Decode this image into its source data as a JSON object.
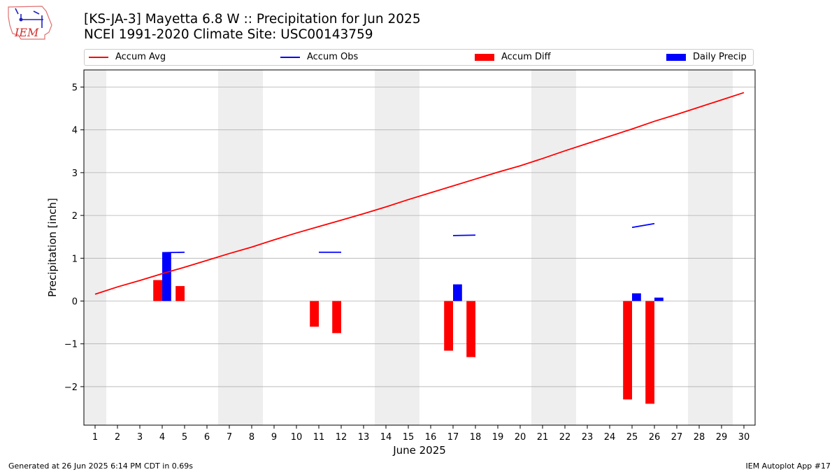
{
  "title_line1": "[KS-JA-3] Mayetta 6.8 W :: Precipitation for Jun 2025",
  "title_line2": "NCEI 1991-2020 Climate Site: USC00143759",
  "logo_text": "IEM",
  "legend": [
    {
      "label": "Accum Avg",
      "color": "#ff0000",
      "kind": "line"
    },
    {
      "label": "Accum Obs",
      "color": "#0000ff",
      "kind": "line"
    },
    {
      "label": "Accum Diff",
      "color": "#ff0000",
      "kind": "box"
    },
    {
      "label": "Daily Precip",
      "color": "#0000ff",
      "kind": "box"
    }
  ],
  "footer_left": "Generated at 26 Jun 2025 6:14 PM CDT in 0.69s",
  "footer_right": "IEM Autoplot App #17",
  "colors": {
    "avg": "#ff0000",
    "obs": "#0000ff",
    "diff": "#ff0000",
    "daily": "#0000ff",
    "weekend": "#eeeeee",
    "grid": "#b0b0b0"
  },
  "chart_data": {
    "type": "bar",
    "xlabel": "June 2025",
    "ylabel": "Precipitation [inch]",
    "xlim": [
      0.5,
      30.5
    ],
    "ylim": [
      -2.9,
      5.4
    ],
    "x_ticks": [
      1,
      2,
      3,
      4,
      5,
      6,
      7,
      8,
      9,
      10,
      11,
      12,
      13,
      14,
      15,
      16,
      17,
      18,
      19,
      20,
      21,
      22,
      23,
      24,
      25,
      26,
      27,
      28,
      29,
      30
    ],
    "y_ticks": [
      -2,
      -1,
      0,
      1,
      2,
      3,
      4,
      5
    ],
    "y_tick_labels": [
      "−2",
      "−1",
      "0",
      "1",
      "2",
      "3",
      "4",
      "5"
    ],
    "grid": true,
    "weekend_bands": [
      [
        0.5,
        1.5
      ],
      [
        6.5,
        8.5
      ],
      [
        13.5,
        15.5
      ],
      [
        20.5,
        22.5
      ],
      [
        27.5,
        29.5
      ]
    ],
    "series": [
      {
        "name": "Accum Avg",
        "type": "line",
        "x": [
          1,
          2,
          3,
          4,
          5,
          6,
          7,
          8,
          9,
          10,
          11,
          12,
          13,
          14,
          15,
          16,
          17,
          18,
          19,
          20,
          21,
          22,
          23,
          24,
          25,
          26,
          27,
          28,
          29,
          30
        ],
        "values": [
          0.16,
          0.33,
          0.48,
          0.64,
          0.79,
          0.95,
          1.11,
          1.26,
          1.43,
          1.59,
          1.74,
          1.89,
          2.04,
          2.2,
          2.37,
          2.53,
          2.69,
          2.85,
          3.01,
          3.16,
          3.33,
          3.51,
          3.68,
          3.85,
          4.02,
          4.2,
          4.36,
          4.53,
          4.7,
          4.87
        ]
      },
      {
        "name": "Accum Obs",
        "type": "line",
        "segments": [
          {
            "x": [
              4,
              5
            ],
            "values": [
              1.13,
              1.14
            ]
          },
          {
            "x": [
              11,
              12
            ],
            "values": [
              1.14,
              1.14
            ]
          },
          {
            "x": [
              17,
              18
            ],
            "values": [
              1.53,
              1.54
            ]
          },
          {
            "x": [
              25,
              26
            ],
            "values": [
              1.72,
              1.81
            ]
          }
        ]
      },
      {
        "name": "Accum Diff",
        "type": "bar",
        "x": [
          4,
          5,
          11,
          12,
          17,
          18,
          25,
          26
        ],
        "values": [
          0.49,
          0.35,
          -0.6,
          -0.75,
          -1.16,
          -1.31,
          -2.3,
          -2.4
        ]
      },
      {
        "name": "Daily Precip",
        "type": "bar",
        "x": [
          4,
          17,
          25,
          26
        ],
        "values": [
          1.13,
          0.39,
          0.18,
          0.08
        ]
      }
    ]
  }
}
